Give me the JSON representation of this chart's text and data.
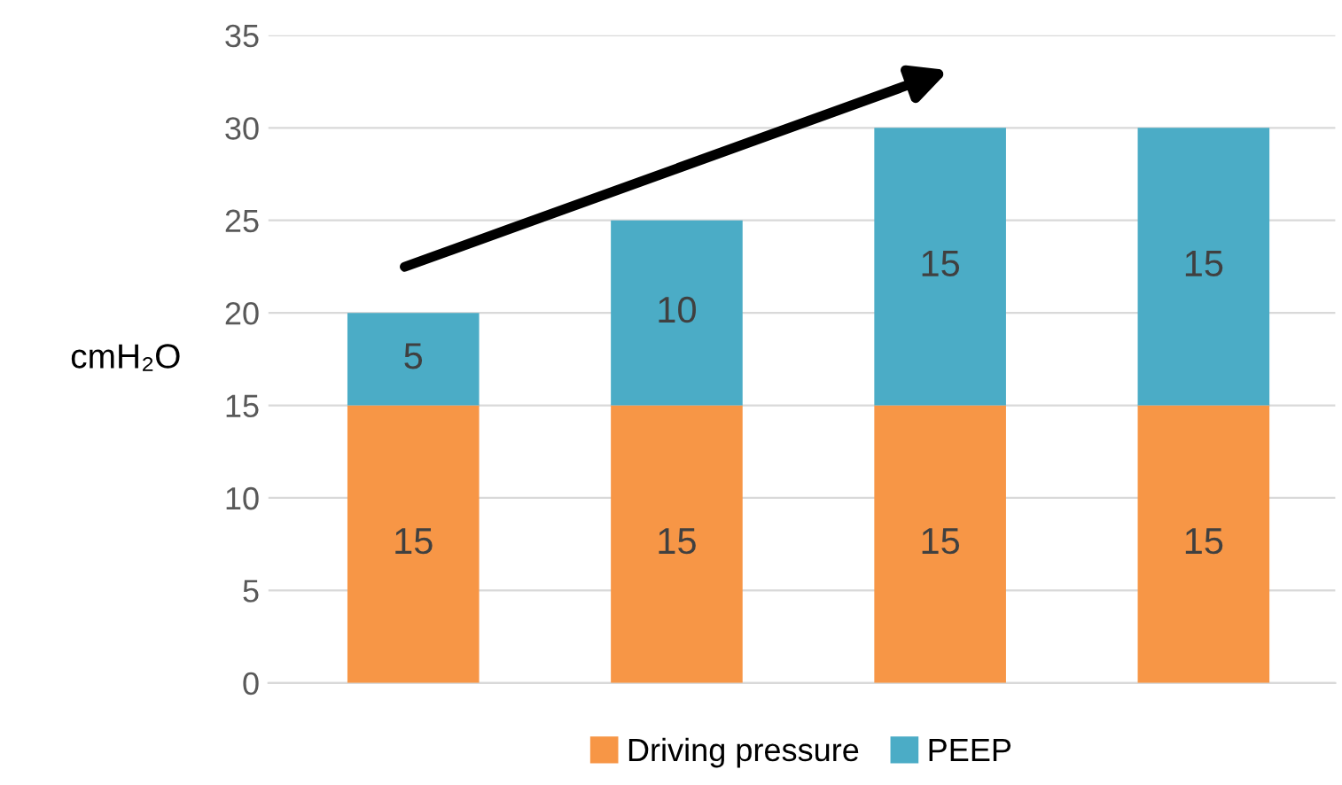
{
  "chart_data": {
    "type": "bar",
    "stacked": true,
    "categories": [
      null,
      null,
      null,
      null
    ],
    "series": [
      {
        "name": "Driving pressure",
        "color": "#f79646",
        "values": [
          15,
          15,
          15,
          15
        ]
      },
      {
        "name": "PEEP",
        "color": "#4bacc6",
        "values": [
          5,
          10,
          15,
          15
        ]
      }
    ],
    "ylabel": "cmH₂O",
    "ylim": [
      0,
      35
    ],
    "yticks": [
      0,
      5,
      10,
      15,
      20,
      25,
      30,
      35
    ],
    "grid": "y",
    "legend": "bottom",
    "data_labels": true
  }
}
